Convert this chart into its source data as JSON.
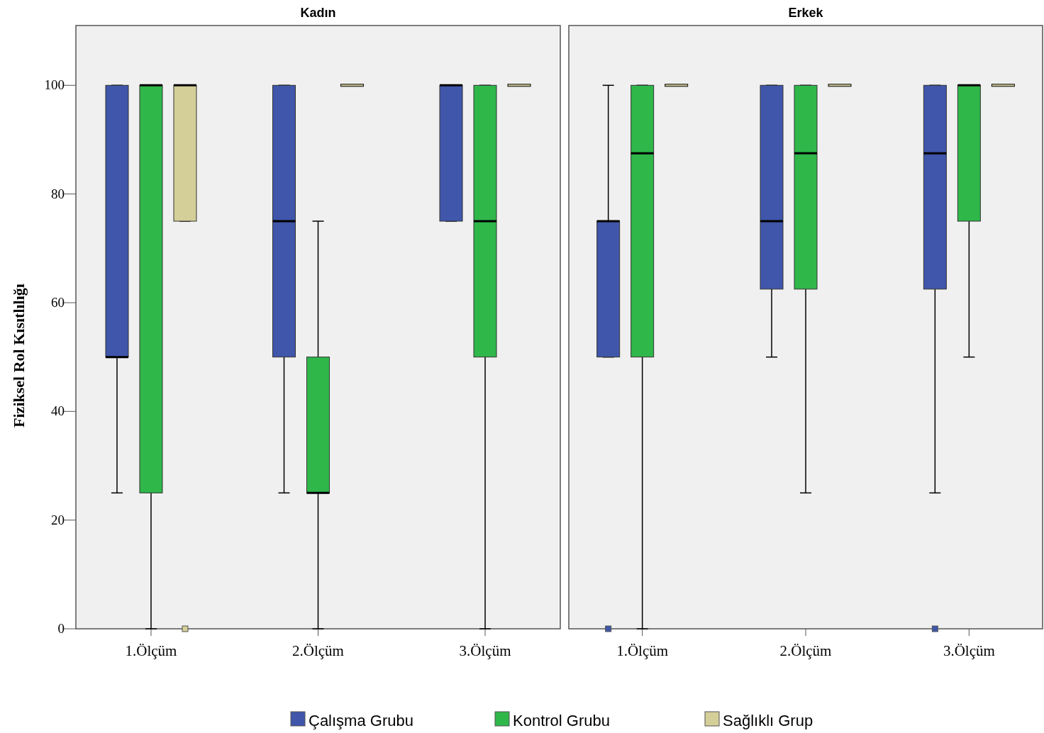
{
  "chart_data": [
    {
      "type": "box",
      "title": "Kadın",
      "ylabel": "Fiziksel Rol Kısıtlılığı",
      "categories": [
        "1.Ölçüm",
        "2.Ölçüm",
        "3.Ölçüm"
      ],
      "ylim": [
        0,
        111
      ],
      "yticks": [
        0,
        20,
        40,
        60,
        80,
        100
      ],
      "legend": "bottom",
      "series": [
        {
          "name": "Çalışma Grubu",
          "color": "#3f56aa",
          "boxes": [
            {
              "low": 25,
              "q1": 50,
              "median": 50,
              "q3": 100,
              "high": 100
            },
            {
              "low": 25,
              "q1": 50,
              "median": 75,
              "q3": 100,
              "high": 100
            },
            {
              "low": 75,
              "q1": 75,
              "median": 100,
              "q3": 100,
              "high": 100
            }
          ]
        },
        {
          "name": "Kontrol Grubu",
          "color": "#2fb74a",
          "boxes": [
            {
              "low": 0,
              "q1": 25,
              "median": 100,
              "q3": 100,
              "high": 100
            },
            {
              "low": 0,
              "q1": 25,
              "median": 25,
              "q3": 50,
              "high": 75
            },
            {
              "low": 0,
              "q1": 50,
              "median": 75,
              "q3": 100,
              "high": 100
            }
          ]
        },
        {
          "name": "Sağlıklı Grup",
          "color": "#d4cf98",
          "boxes": [
            {
              "low": 75,
              "q1": 75,
              "median": 100,
              "q3": 100,
              "high": 100,
              "outliers": [
                0
              ]
            },
            {
              "low": 100,
              "q1": 100,
              "median": 100,
              "q3": 100,
              "high": 100
            },
            {
              "low": 100,
              "q1": 100,
              "median": 100,
              "q3": 100,
              "high": 100
            }
          ]
        }
      ]
    },
    {
      "type": "box",
      "title": "Erkek",
      "categories": [
        "1.Ölçüm",
        "2.Ölçüm",
        "3.Ölçüm"
      ],
      "ylim": [
        0,
        111
      ],
      "tick_labels": "x",
      "series": [
        {
          "color": "#3f56aa",
          "boxes": [
            {
              "low": 50,
              "q1": 50,
              "median": 75,
              "q3": 75,
              "high": 100,
              "outliers": [
                0
              ]
            },
            {
              "low": 50,
              "q1": 62.5,
              "median": 75,
              "q3": 100,
              "high": 100
            },
            {
              "low": 25,
              "q1": 62.5,
              "median": 87.5,
              "q3": 100,
              "high": 100,
              "outliers": [
                0
              ]
            }
          ]
        },
        {
          "color": "#2fb74a",
          "boxes": [
            {
              "low": 0,
              "q1": 50,
              "median": 87.5,
              "q3": 100,
              "high": 100
            },
            {
              "low": 25,
              "q1": 62.5,
              "median": 87.5,
              "q3": 100,
              "high": 100
            },
            {
              "low": 50,
              "q1": 75,
              "median": 100,
              "q3": 100,
              "high": 100
            }
          ]
        },
        {
          "color": "#d4cf98",
          "boxes": [
            {
              "low": 100,
              "q1": 100,
              "median": 100,
              "q3": 100,
              "high": 100
            },
            {
              "low": 100,
              "q1": 100,
              "median": 100,
              "q3": 100,
              "high": 100
            },
            {
              "low": 100,
              "q1": 100,
              "median": 100,
              "q3": 100,
              "high": 100
            }
          ]
        }
      ]
    }
  ]
}
